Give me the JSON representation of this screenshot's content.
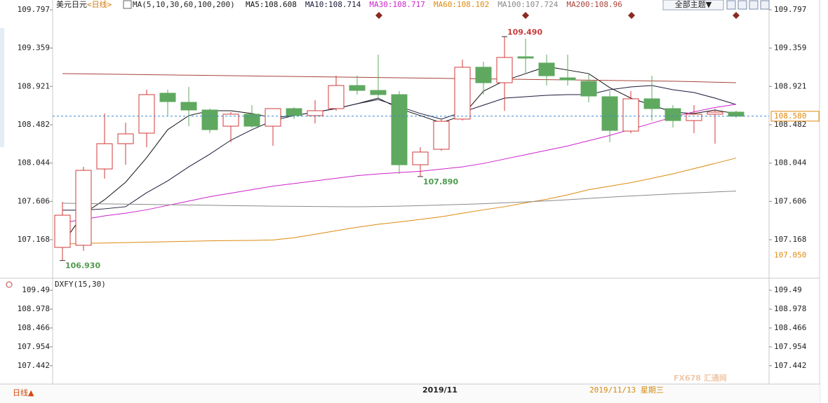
{
  "toolbar": {
    "symbol": "美元日元",
    "period": "<日线>",
    "indicator": "MA(5,10,30,60,100,200)",
    "theme_button": "全部主题▼"
  },
  "footer": {
    "period_button": "日线▲",
    "month_label": "2019/11",
    "date_label": "2019/11/13 星期三",
    "watermark": "FX678 汇通网"
  },
  "chart_data": [
    {
      "type": "candlestick",
      "categories": [
        null,
        null,
        null,
        null,
        null,
        null,
        null,
        null,
        null,
        null,
        null,
        null,
        null,
        null,
        null,
        null,
        null,
        null,
        null,
        null,
        null,
        null,
        null,
        null,
        null,
        null,
        null,
        null,
        null,
        null,
        null,
        null,
        null
      ],
      "open": [
        107.08,
        107.104,
        107.977,
        108.266,
        108.386,
        108.843,
        108.739,
        108.651,
        108.466,
        108.603,
        108.466,
        108.667,
        108.587,
        108.667,
        108.931,
        108.875,
        108.827,
        108.025,
        108.202,
        108.547,
        109.14,
        108.963,
        109.26,
        109.188,
        109.019,
        108.979,
        108.803,
        108.41,
        108.779,
        108.667,
        108.53,
        108.603,
        108.627
      ],
      "high": [
        107.601,
        108.001,
        108.611,
        108.506,
        108.883,
        108.883,
        108.915,
        108.667,
        108.627,
        108.707,
        108.667,
        108.683,
        108.763,
        109.043,
        109.043,
        109.284,
        108.867,
        108.226,
        108.547,
        109.228,
        109.204,
        109.49,
        109.468,
        109.284,
        109.284,
        109.067,
        108.867,
        108.867,
        109.043,
        108.707,
        108.707,
        108.667,
        108.643
      ],
      "low": [
        106.93,
        107.04,
        107.865,
        108.025,
        108.226,
        108.587,
        108.466,
        108.386,
        108.282,
        108.45,
        108.242,
        108.547,
        108.498,
        108.643,
        108.827,
        108.787,
        107.921,
        107.89,
        108.186,
        108.53,
        108.827,
        108.643,
        109.067,
        108.931,
        108.931,
        108.739,
        108.282,
        108.386,
        108.53,
        108.45,
        108.386,
        108.266,
        108.563
      ],
      "close": [
        107.448,
        107.961,
        108.266,
        108.378,
        108.827,
        108.747,
        108.651,
        108.426,
        108.603,
        108.466,
        108.667,
        108.587,
        108.643,
        108.931,
        108.875,
        108.827,
        108.025,
        108.17,
        108.522,
        109.14,
        108.963,
        109.252,
        109.244,
        109.043,
        108.995,
        108.811,
        108.418,
        108.779,
        108.667,
        108.53,
        108.603,
        108.627,
        108.58
      ],
      "up_color": "#d03a3a",
      "down_color": "#5fa85f",
      "series": [
        {
          "name": "MA5:108.608",
          "color": "#111111",
          "values": [
            107.12,
            107.464,
            107.625,
            107.825,
            108.106,
            108.426,
            108.587,
            108.643,
            108.643,
            108.611,
            108.563,
            108.587,
            108.627,
            108.667,
            108.723,
            108.787,
            108.667,
            108.587,
            108.506,
            108.587,
            108.867,
            108.987,
            109.067,
            109.148,
            109.108,
            109.067,
            108.907,
            108.787,
            108.707,
            108.627,
            108.611,
            108.651,
            108.608
          ]
        },
        {
          "name": "MA10:108.714",
          "color": "#1a1a3a",
          "values": [
            107.505,
            107.505,
            107.521,
            107.545,
            107.705,
            107.841,
            108.001,
            108.146,
            108.306,
            108.426,
            108.53,
            108.587,
            108.627,
            108.667,
            108.723,
            108.771,
            108.691,
            108.611,
            108.547,
            108.627,
            108.707,
            108.787,
            108.803,
            108.819,
            108.827,
            108.827,
            108.883,
            108.915,
            108.931,
            108.883,
            108.851,
            108.787,
            108.714
          ]
        },
        {
          "name": "MA30:108.717",
          "color": "#cc22cc",
          "values": [
            107.36,
            107.4,
            107.44,
            107.47,
            107.51,
            107.56,
            107.61,
            107.66,
            107.7,
            107.74,
            107.78,
            107.81,
            107.84,
            107.87,
            107.9,
            107.92,
            107.935,
            107.95,
            107.975,
            108.0,
            108.04,
            108.09,
            108.14,
            108.19,
            108.24,
            108.3,
            108.36,
            108.43,
            108.5,
            108.57,
            108.63,
            108.68,
            108.717
          ]
        },
        {
          "name": "MA60:108.102",
          "color": "#dd8a10",
          "values": [
            107.12,
            107.125,
            107.13,
            107.135,
            107.14,
            107.145,
            107.15,
            107.155,
            107.158,
            107.16,
            107.165,
            107.19,
            107.23,
            107.27,
            107.31,
            107.344,
            107.37,
            107.4,
            107.43,
            107.47,
            107.51,
            107.545,
            107.59,
            107.63,
            107.681,
            107.74,
            107.78,
            107.82,
            107.87,
            107.921,
            107.98,
            108.04,
            108.102
          ]
        },
        {
          "name": "MA100:107.724",
          "color": "#8a8a8a",
          "values": [
            107.585,
            107.582,
            107.578,
            107.575,
            107.572,
            107.568,
            107.565,
            107.562,
            107.558,
            107.555,
            107.552,
            107.55,
            107.548,
            107.546,
            107.545,
            107.548,
            107.552,
            107.558,
            107.565,
            107.572,
            107.58,
            107.59,
            107.6,
            107.612,
            107.625,
            107.64,
            107.655,
            107.668,
            107.68,
            107.692,
            107.703,
            107.714,
            107.724
          ]
        },
        {
          "name": "MA200:108.96",
          "color": "#a8443a",
          "values": [
            109.067,
            109.064,
            109.061,
            109.058,
            109.055,
            109.052,
            109.049,
            109.046,
            109.043,
            109.04,
            109.037,
            109.034,
            109.031,
            109.028,
            109.025,
            109.022,
            109.019,
            109.016,
            109.013,
            109.01,
            109.007,
            109.004,
            109.001,
            108.998,
            108.995,
            108.992,
            108.989,
            108.986,
            108.983,
            108.98,
            108.975,
            108.969,
            108.963
          ]
        }
      ],
      "ylim": [
        106.727,
        109.909
      ],
      "yticks": [
        109.797,
        109.359,
        108.921,
        108.482,
        108.044,
        107.606,
        107.168
      ],
      "annotations": [
        {
          "text": "109.490",
          "value": 109.49,
          "color": "#c83a3a"
        },
        {
          "text": "107.890",
          "value": 107.89,
          "color": "#4e9a4e"
        },
        {
          "text": "106.930",
          "value": 106.93,
          "color": "#4e9a4e"
        }
      ],
      "price_marks": [
        {
          "value": 108.58,
          "label": "108.580",
          "color": "#e08a10",
          "boxed": true
        },
        {
          "value": 107.05,
          "label": "107.050",
          "color": "#e08a10",
          "boxed": false
        }
      ]
    },
    {
      "type": "indicator",
      "title": "DXFY(15,30)",
      "ylim": [
        106.943,
        109.816
      ],
      "yticks": [
        109.49,
        108.978,
        108.466,
        107.954,
        107.442
      ]
    }
  ]
}
